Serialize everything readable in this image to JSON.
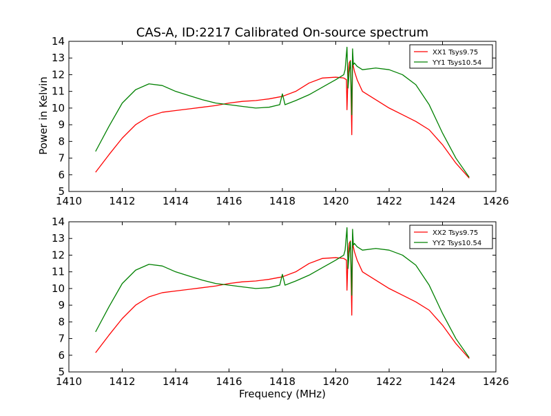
{
  "figure": {
    "title": "CAS-A, ID:2217 Calibrated On-source spectrum",
    "xlabel": "Frequency (MHz)",
    "ylabel": "Power in Kelvin"
  },
  "chart_data": [
    {
      "type": "line",
      "xlabel": "",
      "ylabel": "Power in Kelvin",
      "xlim": [
        1410,
        1426
      ],
      "ylim": [
        5,
        14
      ],
      "xticks": [
        1410,
        1412,
        1414,
        1416,
        1418,
        1420,
        1422,
        1424,
        1426
      ],
      "yticks": [
        5,
        6,
        7,
        8,
        9,
        10,
        11,
        12,
        13,
        14
      ],
      "grid": false,
      "legend": "top-right",
      "series": [
        {
          "name": "XX1 Tsys9.75",
          "color": "#ff0000",
          "x": [
            1411.0,
            1411.5,
            1412.0,
            1412.5,
            1413.0,
            1413.5,
            1414.0,
            1414.5,
            1415.0,
            1415.5,
            1416.0,
            1416.5,
            1417.0,
            1417.5,
            1418.0,
            1418.5,
            1419.0,
            1419.5,
            1420.0,
            1420.3,
            1420.4,
            1420.42,
            1420.46,
            1420.5,
            1420.55,
            1420.6,
            1420.63,
            1420.66,
            1420.7,
            1420.8,
            1421.0,
            1421.5,
            1422.0,
            1422.5,
            1423.0,
            1423.5,
            1424.0,
            1424.5,
            1425.0
          ],
          "y": [
            6.15,
            7.2,
            8.2,
            9.0,
            9.5,
            9.75,
            9.85,
            9.95,
            10.05,
            10.15,
            10.3,
            10.4,
            10.45,
            10.55,
            10.7,
            11.0,
            11.5,
            11.8,
            11.85,
            11.8,
            11.7,
            9.9,
            12.0,
            12.7,
            12.85,
            8.4,
            12.85,
            12.5,
            12.2,
            11.7,
            11.0,
            10.5,
            10.0,
            9.6,
            9.2,
            8.7,
            7.8,
            6.7,
            5.8
          ]
        },
        {
          "name": "YY1 Tsys10.54",
          "color": "#008000",
          "x": [
            1411.0,
            1411.5,
            1412.0,
            1412.5,
            1413.0,
            1413.5,
            1414.0,
            1414.5,
            1415.0,
            1415.5,
            1416.0,
            1416.5,
            1417.0,
            1417.5,
            1417.9,
            1418.0,
            1418.1,
            1418.5,
            1419.0,
            1419.5,
            1420.0,
            1420.3,
            1420.35,
            1420.42,
            1420.46,
            1420.5,
            1420.55,
            1420.6,
            1420.63,
            1420.66,
            1420.7,
            1420.8,
            1421.0,
            1421.5,
            1422.0,
            1422.5,
            1423.0,
            1423.5,
            1424.0,
            1424.5,
            1425.0
          ],
          "y": [
            7.4,
            8.9,
            10.3,
            11.1,
            11.45,
            11.35,
            11.0,
            10.75,
            10.5,
            10.3,
            10.2,
            10.1,
            10.0,
            10.05,
            10.2,
            10.85,
            10.2,
            10.45,
            10.8,
            11.25,
            11.7,
            12.0,
            12.3,
            13.65,
            11.2,
            12.1,
            12.8,
            9.6,
            13.55,
            12.6,
            12.7,
            12.5,
            12.3,
            12.4,
            12.3,
            12.0,
            11.4,
            10.2,
            8.5,
            7.0,
            5.85
          ]
        }
      ]
    },
    {
      "type": "line",
      "xlabel": "Frequency (MHz)",
      "ylabel": "",
      "xlim": [
        1410,
        1426
      ],
      "ylim": [
        5,
        14
      ],
      "xticks": [
        1410,
        1412,
        1414,
        1416,
        1418,
        1420,
        1422,
        1424,
        1426
      ],
      "yticks": [
        5,
        6,
        7,
        8,
        9,
        10,
        11,
        12,
        13,
        14
      ],
      "grid": false,
      "legend": "top-right",
      "series": [
        {
          "name": "XX2 Tsys9.75",
          "color": "#ff0000",
          "x": [
            1411.0,
            1411.5,
            1412.0,
            1412.5,
            1413.0,
            1413.5,
            1414.0,
            1414.5,
            1415.0,
            1415.5,
            1416.0,
            1416.5,
            1417.0,
            1417.5,
            1418.0,
            1418.5,
            1419.0,
            1419.5,
            1420.0,
            1420.3,
            1420.4,
            1420.42,
            1420.46,
            1420.5,
            1420.55,
            1420.6,
            1420.63,
            1420.66,
            1420.7,
            1420.8,
            1421.0,
            1421.5,
            1422.0,
            1422.5,
            1423.0,
            1423.5,
            1424.0,
            1424.5,
            1425.0
          ],
          "y": [
            6.15,
            7.2,
            8.2,
            9.0,
            9.5,
            9.75,
            9.85,
            9.95,
            10.05,
            10.15,
            10.3,
            10.4,
            10.45,
            10.55,
            10.7,
            11.0,
            11.5,
            11.8,
            11.85,
            11.8,
            11.7,
            9.9,
            12.0,
            12.7,
            12.85,
            8.4,
            12.85,
            12.5,
            12.2,
            11.7,
            11.0,
            10.5,
            10.0,
            9.6,
            9.2,
            8.7,
            7.8,
            6.7,
            5.8
          ]
        },
        {
          "name": "YY2 Tsys10.54",
          "color": "#008000",
          "x": [
            1411.0,
            1411.5,
            1412.0,
            1412.5,
            1413.0,
            1413.5,
            1414.0,
            1414.5,
            1415.0,
            1415.5,
            1416.0,
            1416.5,
            1417.0,
            1417.5,
            1417.9,
            1418.0,
            1418.1,
            1418.5,
            1419.0,
            1419.5,
            1420.0,
            1420.3,
            1420.35,
            1420.42,
            1420.46,
            1420.5,
            1420.55,
            1420.6,
            1420.63,
            1420.66,
            1420.7,
            1420.8,
            1421.0,
            1421.5,
            1422.0,
            1422.5,
            1423.0,
            1423.5,
            1424.0,
            1424.5,
            1425.0
          ],
          "y": [
            7.4,
            8.9,
            10.3,
            11.1,
            11.45,
            11.35,
            11.0,
            10.75,
            10.5,
            10.3,
            10.2,
            10.1,
            10.0,
            10.05,
            10.2,
            10.85,
            10.2,
            10.45,
            10.8,
            11.25,
            11.7,
            12.0,
            12.3,
            13.65,
            11.2,
            12.1,
            12.8,
            9.6,
            13.55,
            12.6,
            12.7,
            12.5,
            12.3,
            12.4,
            12.3,
            12.0,
            11.4,
            10.2,
            8.5,
            7.0,
            5.85
          ]
        }
      ]
    }
  ]
}
